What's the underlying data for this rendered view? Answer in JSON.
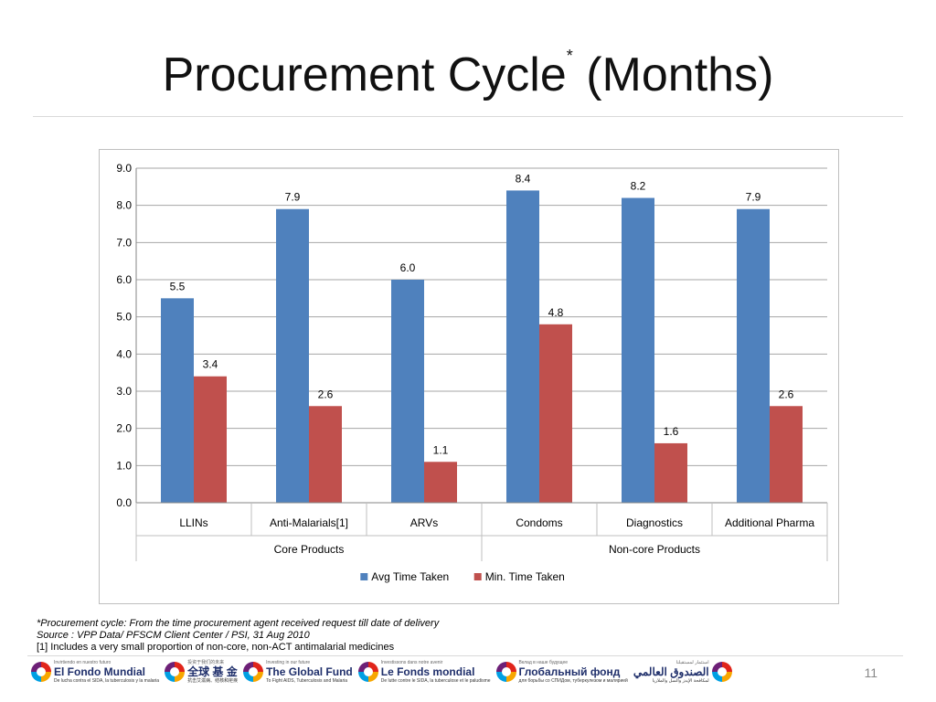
{
  "slide": {
    "title": "Procurement Cycle",
    "title_marker": "*",
    "title_suffix": "(Months)",
    "page_number": "11"
  },
  "footnotes": {
    "line1": "*Procurement cycle: From the time procurement agent received request till date of delivery",
    "line2": "Source : VPP Data/ PFSCM Client Center / PSI, 31 Aug 2010",
    "line3": "[1] Includes a very small proportion of non-core, non-ACT antimalarial medicines"
  },
  "logos": [
    {
      "tagline": "Invirtiendo en nuestro futuro",
      "name": "El Fondo Mundial",
      "sub": "De lucha contra el SIDA, la tuberculosis y la malaria"
    },
    {
      "tagline": "投资于我们的未来",
      "name": "全球 基 金",
      "sub": "抗击艾滋病、结核和疟疾"
    },
    {
      "tagline": "Investing in our future",
      "name": "The Global Fund",
      "sub": "To Fight AIDS, Tuberculosis and Malaria"
    },
    {
      "tagline": "Investissons dans notre avenir",
      "name": "Le Fonds mondial",
      "sub": "De lutte contre le SIDA, la tuberculose et le paludisme"
    },
    {
      "tagline": "Вклад в наше будущее",
      "name": "Глобальный фонд",
      "sub": "для борьбы со СПИДом, туберкулезом и малярией"
    },
    {
      "tagline": "استثمار لمستقبلنا",
      "name": "الصندوق العالمي",
      "sub": "لمكافحة الإيدز والسل والملاريا"
    }
  ],
  "chart_data": {
    "type": "bar",
    "categories": [
      "LLINs",
      "Anti-Malarials[1]",
      "ARVs",
      "Condoms",
      "Diagnostics",
      "Additional Pharma"
    ],
    "groups": [
      {
        "label": "Core Products",
        "span": [
          0,
          2
        ]
      },
      {
        "label": "Non-core Products",
        "span": [
          3,
          5
        ]
      }
    ],
    "series": [
      {
        "name": "Avg Time Taken",
        "color": "#4f81bd",
        "values": [
          5.5,
          7.9,
          6.0,
          8.4,
          8.2,
          7.9
        ]
      },
      {
        "name": "Min. Time Taken",
        "color": "#c0504d",
        "values": [
          3.4,
          2.6,
          1.1,
          4.8,
          1.6,
          2.6
        ]
      }
    ],
    "ylim": [
      0,
      9
    ],
    "yticks": [
      "0.0",
      "1.0",
      "2.0",
      "3.0",
      "4.0",
      "5.0",
      "6.0",
      "7.0",
      "8.0",
      "9.0"
    ],
    "grid": true,
    "legend": "bottom",
    "value_format": "fixed1"
  }
}
